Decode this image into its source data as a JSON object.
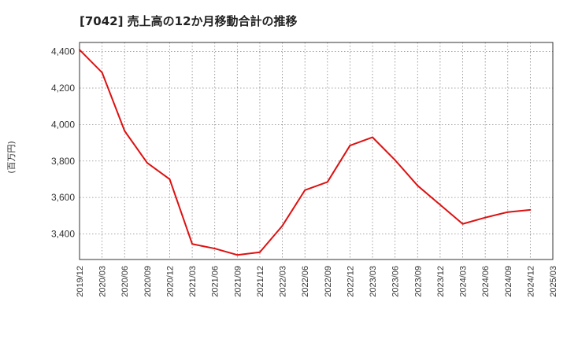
{
  "chart_data": {
    "type": "line",
    "title": "[7042]  売上高の12か月移動合計の推移",
    "ylabel": "(百万円)",
    "xlabel": "",
    "ylim": [
      3260,
      4450
    ],
    "yticks": [
      3400,
      3600,
      3800,
      4000,
      4200,
      4400
    ],
    "ytick_labels": [
      "3,400",
      "3,600",
      "3,800",
      "4,000",
      "4,200",
      "4,400"
    ],
    "x_tick_labels": [
      "2019/12",
      "2020/03",
      "2020/06",
      "2020/09",
      "2020/12",
      "2021/03",
      "2021/06",
      "2021/09",
      "2021/12",
      "2022/03",
      "2022/06",
      "2022/09",
      "2022/12",
      "2023/03",
      "2023/06",
      "2023/09",
      "2023/12",
      "2024/03",
      "2024/06",
      "2024/09",
      "2024/12",
      "2025/03"
    ],
    "grid": true,
    "series": [
      {
        "name": "売上高の12か月移動合計",
        "color": "#dd1111",
        "values": [
          4410,
          4285,
          3965,
          3790,
          3700,
          3345,
          3320,
          3285,
          3300,
          3445,
          3640,
          3685,
          3885,
          3930,
          3805,
          3665,
          3560,
          3455,
          3490,
          3520,
          3532
        ]
      }
    ]
  }
}
